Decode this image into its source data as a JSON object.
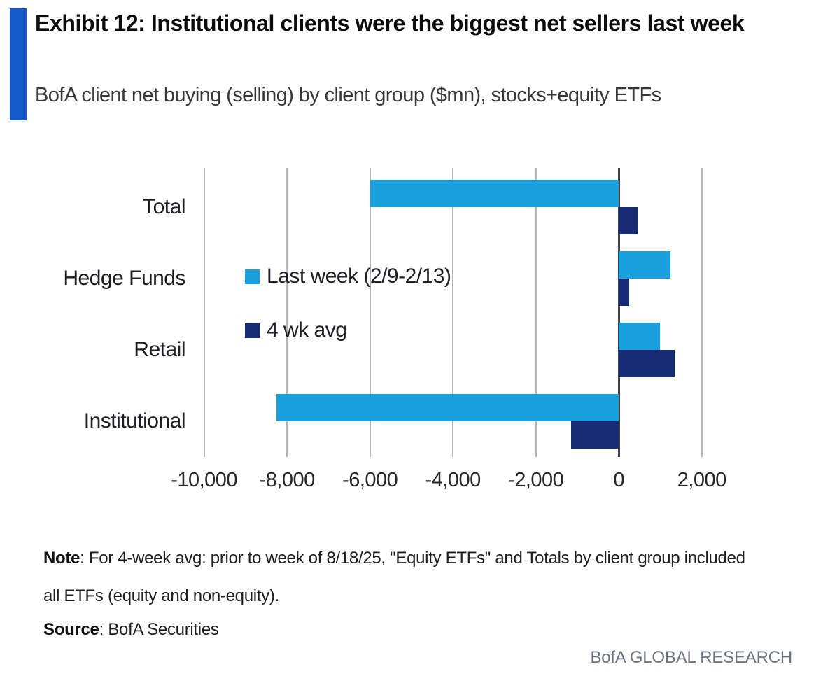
{
  "header": {
    "title": "Exhibit 12: Institutional clients were the biggest net sellers last week",
    "subtitle": "BofA client net buying (selling) by client group ($mn), stocks+equity ETFs"
  },
  "chart_data": {
    "type": "bar",
    "orientation": "horizontal",
    "title": "BofA client net buying (selling) by client group ($mn), stocks+equity ETFs",
    "categories": [
      "Total",
      "Hedge Funds",
      "Retail",
      "Institutional"
    ],
    "series": [
      {
        "name": "Last week (2/9-2/13)",
        "color": "#1aa0dc",
        "values": [
          -6000,
          1250,
          1000,
          -8250
        ]
      },
      {
        "name": "4 wk avg",
        "color": "#162b74",
        "values": [
          450,
          250,
          1350,
          -1150
        ]
      }
    ],
    "xlim": [
      -10500,
      3000
    ],
    "ticks": [
      -10000,
      -8000,
      -6000,
      -4000,
      -2000,
      0,
      2000
    ],
    "tick_labels": [
      "-10,000",
      "-8,000",
      "-6,000",
      "-4,000",
      "-2,000",
      "0",
      "2,000"
    ],
    "grid": "vertical-gridlines-on",
    "legend_position": "inside-plot-left",
    "zero_axis_color": "#404049",
    "gridline_color": "#b5b5b5"
  },
  "colors": {
    "accent_bar": "#1659c8",
    "title_text": "#0c0c0c",
    "subtitle_text": "#383838",
    "footer_text": "#6b7380"
  },
  "note": {
    "label": "Note",
    "text1": ": For 4-week avg: prior to week of 8/18/25, \"Equity ETFs\" and Totals by client group included",
    "line2": "all ETFs (equity and non-equity).",
    "source_label": "Source",
    "source_text": ": BofA Securities"
  },
  "footer": {
    "brand": "BofA GLOBAL RESEARCH"
  }
}
